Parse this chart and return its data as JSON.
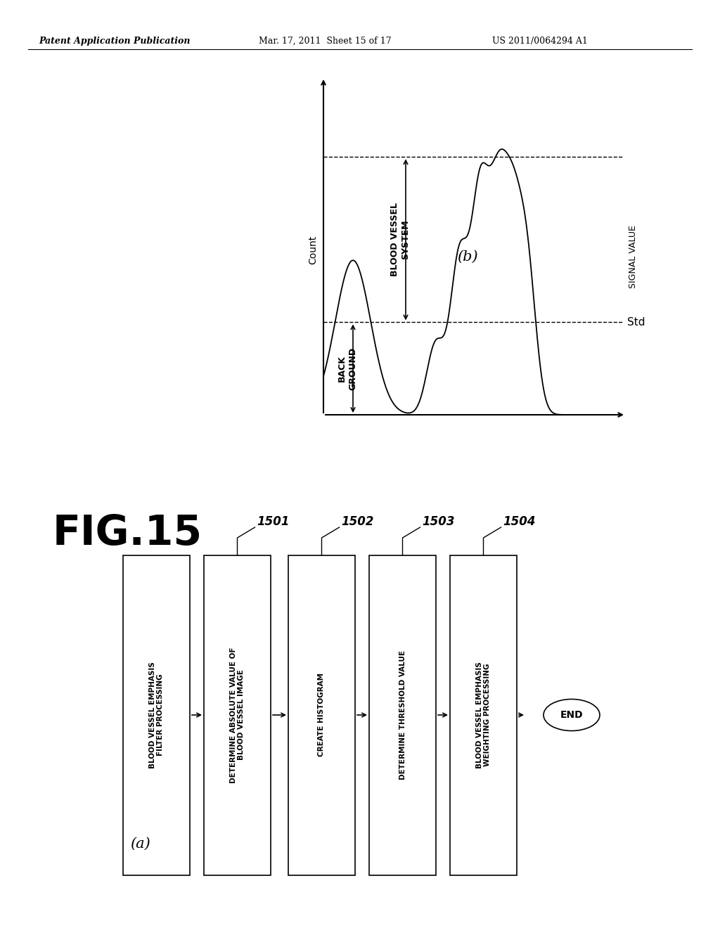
{
  "header_left": "Patent Application Publication",
  "header_mid": "Mar. 17, 2011  Sheet 15 of 17",
  "header_right": "US 2011/0064294 A1",
  "fig_label": "FIG.15",
  "part_a_label": "(a)",
  "part_b_label": "(b)",
  "flowchart_boxes": [
    "BLOOD VESSEL EMPHASIS\nFILTER PROCESSING",
    "DETERMINE ABSOLUTE VALUE OF\nBLOOD VESSEL IMAGE",
    "CREATE HISTOGRAM",
    "DETERMINE THRESHOLD VALUE",
    "BLOOD VESSEL EMPHASIS\nWEIGHTING PROCESSING"
  ],
  "flowchart_end": "END",
  "box_labels": [
    "1501",
    "1502",
    "1503",
    "1504"
  ],
  "graph_ylabel": "Count",
  "graph_xlabel": "SIGNAL VALUE",
  "graph_background_label": "BACK\nGROUND",
  "graph_vessel_label": "BLOOD VESSEL\nSYSTEM",
  "graph_std_label": "Std",
  "bg_color": "#ffffff",
  "line_color": "#000000",
  "text_color": "#000000"
}
